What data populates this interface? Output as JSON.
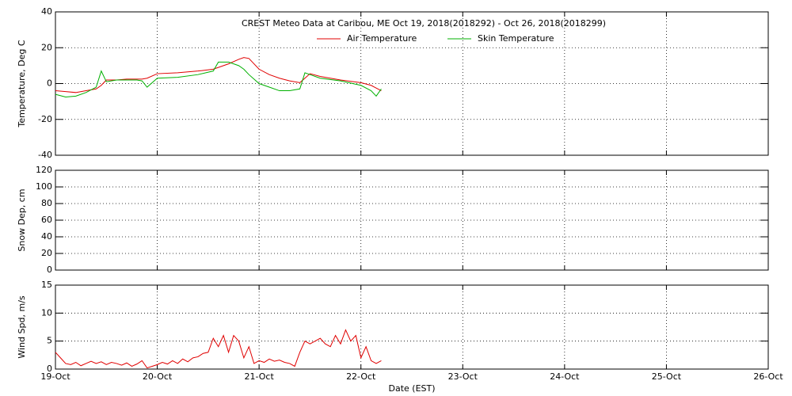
{
  "chart_data": [
    {
      "type": "line",
      "title": "CREST Meteo Data at Caribou, ME   Oct 19, 2018(2018292) - Oct 26, 2018(2018299)",
      "ylabel": "Temperature, Deg C",
      "xlim": [
        0,
        7
      ],
      "ylim": [
        -40,
        40
      ],
      "yticks": [
        -40,
        -20,
        0,
        20,
        40
      ],
      "grid": true,
      "x": [
        0,
        0.1,
        0.2,
        0.3,
        0.4,
        0.45,
        0.5,
        0.6,
        0.7,
        0.8,
        0.85,
        0.9,
        1.0,
        1.2,
        1.4,
        1.55,
        1.6,
        1.7,
        1.8,
        1.85,
        1.9,
        2.0,
        2.1,
        2.2,
        2.3,
        2.4,
        2.45,
        2.5,
        2.6,
        2.8,
        3.0,
        3.1,
        3.15,
        3.2
      ],
      "series": [
        {
          "name": "Air Temperature",
          "color": "#e00000",
          "values": [
            -4,
            -4.5,
            -5,
            -4,
            -3,
            -1,
            2,
            2,
            2.5,
            2.5,
            2.5,
            3,
            5.5,
            6,
            7,
            8,
            9,
            11,
            13.5,
            14.5,
            14,
            8,
            5,
            3,
            1.5,
            0.5,
            3,
            5.5,
            4,
            2,
            0.5,
            -1,
            -2.5,
            -4
          ]
        },
        {
          "name": "Skin Temperature",
          "color": "#00b000",
          "values": [
            -6,
            -7.5,
            -7,
            -5,
            -2,
            7,
            1,
            2,
            2,
            2,
            1.5,
            -2,
            3,
            3.5,
            5,
            7,
            12,
            12,
            10,
            8,
            5,
            0,
            -2,
            -4,
            -4,
            -3,
            6,
            5,
            3,
            1.5,
            -1,
            -4,
            -7,
            -3
          ]
        }
      ]
    },
    {
      "type": "line",
      "ylabel": "Snow Dep, cm",
      "xlim": [
        0,
        7
      ],
      "ylim": [
        0,
        120
      ],
      "yticks": [
        0,
        20,
        40,
        60,
        80,
        100,
        120
      ],
      "grid": true,
      "x": [],
      "series": []
    },
    {
      "type": "line",
      "ylabel": "Wind Spd, m/s",
      "xlabel": "Date (EST)",
      "xlim": [
        0,
        7
      ],
      "ylim": [
        0,
        15
      ],
      "yticks": [
        0,
        5,
        10,
        15
      ],
      "grid": true,
      "xticks": [
        {
          "value": 0,
          "label": "19-Oct"
        },
        {
          "value": 1,
          "label": "20-Oct"
        },
        {
          "value": 2,
          "label": "21-Oct"
        },
        {
          "value": 3,
          "label": "22-Oct"
        },
        {
          "value": 4,
          "label": "23-Oct"
        },
        {
          "value": 5,
          "label": "24-Oct"
        },
        {
          "value": 6,
          "label": "25-Oct"
        },
        {
          "value": 7,
          "label": "26-Oct"
        }
      ],
      "x": [
        0,
        0.05,
        0.1,
        0.15,
        0.2,
        0.25,
        0.3,
        0.35,
        0.4,
        0.45,
        0.5,
        0.55,
        0.6,
        0.65,
        0.7,
        0.75,
        0.8,
        0.85,
        0.9,
        0.95,
        1.0,
        1.05,
        1.1,
        1.15,
        1.2,
        1.25,
        1.3,
        1.35,
        1.4,
        1.45,
        1.5,
        1.55,
        1.6,
        1.65,
        1.7,
        1.75,
        1.8,
        1.85,
        1.9,
        1.95,
        2.0,
        2.05,
        2.1,
        2.15,
        2.2,
        2.25,
        2.3,
        2.35,
        2.4,
        2.45,
        2.5,
        2.55,
        2.6,
        2.65,
        2.7,
        2.75,
        2.8,
        2.85,
        2.9,
        2.95,
        3.0,
        3.05,
        3.1,
        3.15,
        3.2
      ],
      "series": [
        {
          "name": "Wind Speed",
          "color": "#e00000",
          "values": [
            3,
            2,
            1,
            0.8,
            1.2,
            0.6,
            1,
            1.4,
            1,
            1.3,
            0.8,
            1.2,
            1,
            0.7,
            1.1,
            0.5,
            0.9,
            1.5,
            0.2,
            0.5,
            0.8,
            1.2,
            0.9,
            1.5,
            1,
            1.8,
            1.3,
            2,
            2.2,
            2.8,
            3,
            5.5,
            4,
            6,
            3,
            6,
            5,
            2,
            4,
            1,
            1.5,
            1.2,
            1.8,
            1.4,
            1.6,
            1.2,
            1,
            0.5,
            3,
            5,
            4.5,
            5,
            5.5,
            4.5,
            4,
            6,
            4.5,
            7,
            5,
            6,
            2,
            4,
            1.5,
            1,
            1.5
          ]
        }
      ]
    }
  ]
}
